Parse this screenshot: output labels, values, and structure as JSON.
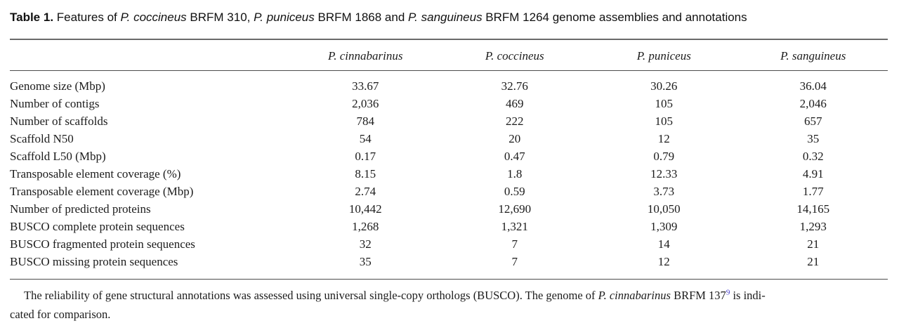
{
  "title": {
    "prefix": "Table 1.",
    "text_1": " Features of ",
    "species_1": "P. coccineus",
    "text_2": " BRFM 310, ",
    "species_2": "P. puniceus",
    "text_3": " BRFM 1868 and ",
    "species_3": "P. sanguineus",
    "text_4": " BRFM 1264 genome assemblies and annotations"
  },
  "table": {
    "column_headers": [
      "P. cinnabarinus",
      "P. coccineus",
      "P. puniceus",
      "P. sanguineus"
    ],
    "rows": [
      {
        "label": "Genome size (Mbp)",
        "values": [
          "33.67",
          "32.76",
          "30.26",
          "36.04"
        ]
      },
      {
        "label": "Number of contigs",
        "values": [
          "2,036",
          "469",
          "105",
          "2,046"
        ]
      },
      {
        "label": "Number of scaffolds",
        "values": [
          "784",
          "222",
          "105",
          "657"
        ]
      },
      {
        "label": "Scaffold N50",
        "values": [
          "54",
          "20",
          "12",
          "35"
        ]
      },
      {
        "label": "Scaffold L50 (Mbp)",
        "values": [
          "0.17",
          "0.47",
          "0.79",
          "0.32"
        ]
      },
      {
        "label": "Transposable element coverage (%)",
        "values": [
          "8.15",
          "1.8",
          "12.33",
          "4.91"
        ]
      },
      {
        "label": "Transposable element coverage (Mbp)",
        "values": [
          "2.74",
          "0.59",
          "3.73",
          "1.77"
        ]
      },
      {
        "label": "Number of predicted proteins",
        "values": [
          "10,442",
          "12,690",
          "10,050",
          "14,165"
        ]
      },
      {
        "label": "BUSCO complete protein sequences",
        "values": [
          "1,268",
          "1,321",
          "1,309",
          "1,293"
        ]
      },
      {
        "label": "BUSCO fragmented protein sequences",
        "values": [
          "32",
          "7",
          "14",
          "21"
        ]
      },
      {
        "label": "BUSCO missing protein sequences",
        "values": [
          "35",
          "7",
          "12",
          "21"
        ]
      }
    ]
  },
  "footnote": {
    "line1_text_1": "The reliability of gene structural annotations was assessed using universal single-copy orthologs (BUSCO). The genome of ",
    "line1_species": "P. cinnabarinus",
    "line1_text_2": " BRFM 137",
    "line1_ref": "9",
    "line1_text_3": " is indi-",
    "line2": "cated for comparison."
  },
  "colors": {
    "text": "#1c1c1c",
    "rule": "#4c4c4c",
    "top_rule": "#6a6a6a",
    "reference_link": "#4038c8",
    "background": "#ffffff"
  }
}
